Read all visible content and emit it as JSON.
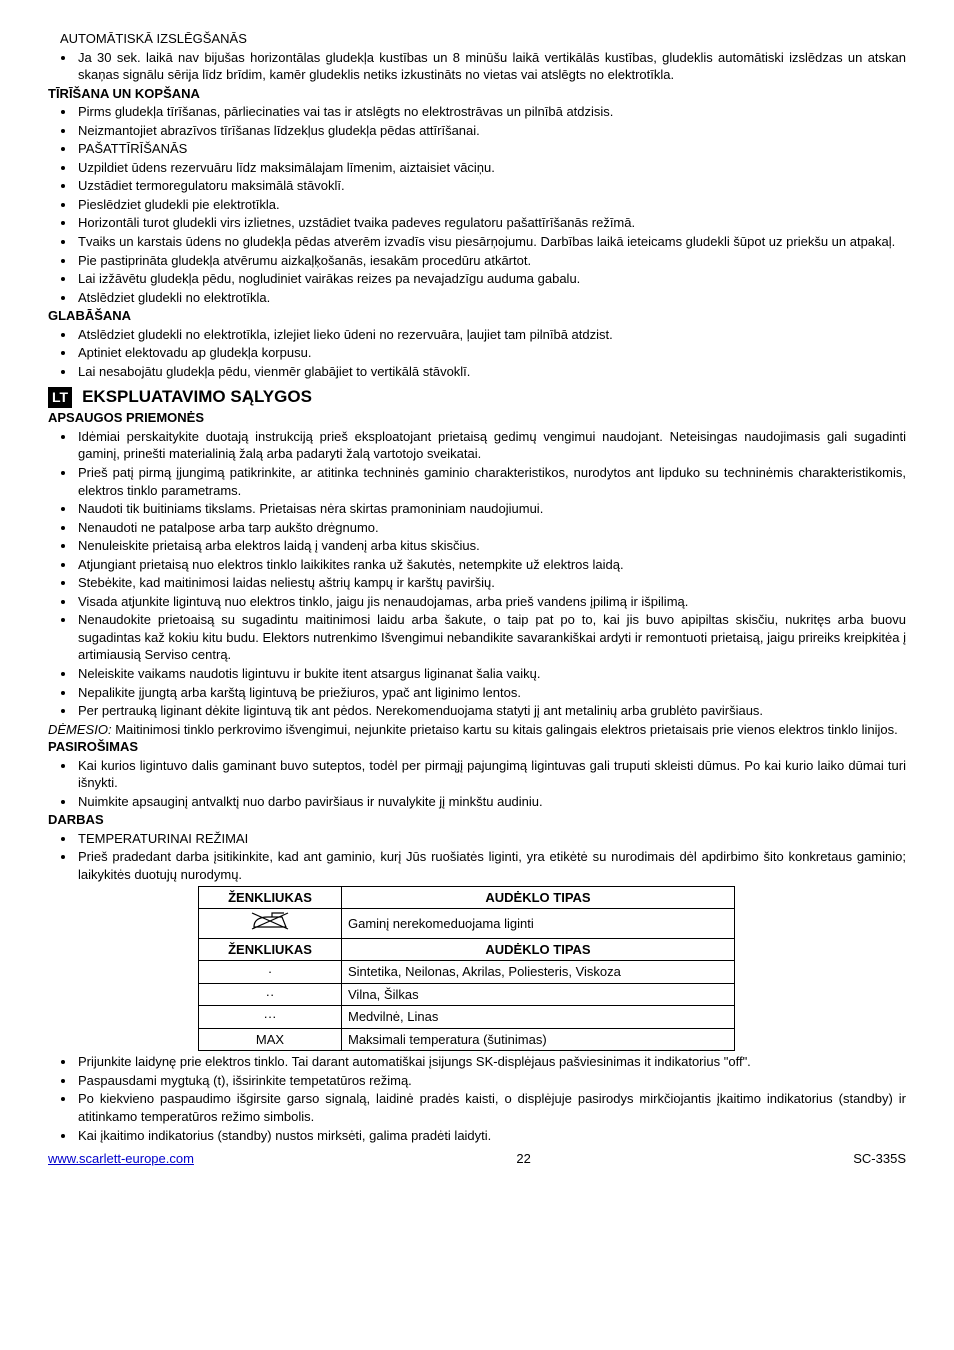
{
  "lv": {
    "section1_title": "AUTOMĀTISKĀ IZSLĒGŠANĀS",
    "section1_items": [
      "Ja 30 sek. laikā nav bijušas horizontālas gludekļa kustības un 8 minūšu laikā vertikālās kustības, gludeklis automātiski izslēdzas un atskan skaņas signālu sērija līdz brīdim, kamēr gludeklis netiks izkustināts no vietas vai atslēgts no elektrotīkla."
    ],
    "section2_title": "TĪRĪŠANA UN KOPŠANA",
    "section2_items": [
      "Pirms gludekļa tīrīšanas, pārliecinaties vai tas ir atslēgts no elektrostrāvas un pilnībā atdzisis.",
      "Neizmantojiet abrazīvos tīrīšanas līdzekļus gludekļa pēdas attīrīšanai.",
      "PAŠATTĪRĪŠANĀS",
      "Uzpildiet ūdens rezervuāru līdz maksimālajam līmenim, aiztaisiet vāciņu.",
      "Uzstādiet termoregulatoru maksimālā stāvoklī.",
      "Pieslēdziet gludekli pie elektrotīkla.",
      "Horizontāli turot gludekli virs izlietnes, uzstādiet tvaika padeves regulatoru pašattīrīšanās režīmā.",
      "Tvaiks un karstais ūdens no gludekļa pēdas atverēm izvadīs visu piesārņojumu. Darbības laikā ieteicams gludekli šūpot uz priekšu un atpakaļ.",
      "Pie pastiprināta gludekļa atvērumu aizkaļķošanās, iesakām procedūru atkārtot.",
      "Lai izžāvētu gludekļa pēdu, nogludiniet vairākas reizes pa nevajadzīgu auduma gabalu.",
      "Atslēdziet gludekli no elektrotīkla."
    ],
    "section3_title": "GLABĀŠANA",
    "section3_items": [
      "Atslēdziet gludekli no elektrotīkla, izlejiet lieko ūdeni no rezervuāra, ļaujiet tam pilnībā atdzist.",
      "Aptiniet elektovadu ap gludekļa korpusu.",
      "Lai nesabojātu gludekļa pēdu, vienmēr glabājiet to vertikālā stāvoklī."
    ]
  },
  "lt": {
    "lang_badge": "LT",
    "big_title": "EKSPLUATAVIMO SĄLYGOS",
    "section1_title": "APSAUGOS PRIEMONĖS",
    "section1_items": [
      "Idėmiai perskaitykite duotają instrukciją prieš eksploatojant prietaisą gedimų vengimui naudojant. Neteisingas naudojimasis gali sugadinti gaminį, prinešti materialinią žalą arba padaryti žalą vartotojo sveikatai.",
      "Prieš patį pirmą įjungimą patikrinkite, ar atitinka techninės gaminio charakteristikos, nurodytos ant lipduko su techninėmis charakteristikomis, elektros tinklo parametrams.",
      "Naudoti tik buitiniams tikslams. Prietaisas nėra skirtas pramoniniam naudojiumui.",
      "Nenaudoti ne patalpose arba tarp aukšto drėgnumo.",
      "Nenuleiskite prietaisą arba elektros laidą į vandenį arba kitus skisčius.",
      "Atjungiant prietaisą nuo elektros tinklo laikikites ranka už šakutės, netempkite už elektros laidą.",
      "Stebėkite, kad maitinimosi laidas neliestų aštrių kampų ir karštų paviršių.",
      "Visada atjunkite ligintuvą nuo elektros tinklo, jaigu jis nenaudojamas, arba prieš vandens įpilimą ir išpilimą.",
      "Nenaudokite prietoaisą su sugadintu maitinimosi laidu arba šakute, o taip pat po to, kai jis buvo apipiltas skisčiu, nukritęs arba buovu sugadintas kaž kokiu kitu budu. Elektors nutrenkimo Išvengimui nebandikite savarankiškai ardyti ir remontuoti prietaisą, jaigu prireiks kreipkitėa į artimiausią Serviso centrą.",
      "Neleiskite vaikams naudotis ligintuvu ir bukite itent atsargus liginanat šalia vaikų.",
      "Nepalikite įjungtą arba karštą ligintuvą be priežiuros, ypač ant liginimo lentos.",
      "Per pertrauką liginant dėkite ligintuvą tik  ant pėdos. Nerekomenduojama statyti jį ant metalinių arba grublėto paviršiaus."
    ],
    "attention_label": "DĖMESIO:",
    "attention_text": " Maitinimosi tinklo perkrovimo išvengimui, nejunkite prietaiso kartu su kitais galingais elektros prietaisais prie vienos elektros tinklo linijos.",
    "section2_title": "PASIROŠIMAS",
    "section2_items": [
      "Kai kurios ligintuvo dalis gaminant buvo suteptos, todėl per pirmąjį pajungimą ligintuvas gali truputi skleisti dūmus. Po kai kurio laiko dūmai turi išnykti.",
      "Nuimkite apsauginį antvalktį nuo darbo paviršiaus ir nuvalykite jį minkštu audiniu."
    ],
    "section3_title": "DARBAS",
    "section3_items_pre": [
      "TEMPERATURINAI REŽIMAI",
      "Prieš pradedant darba įsitikinkite, kad ant gaminio, kurį Jūs ruošiatės liginti, yra etikėtė su nurodimais dėl apdirbimo šito konkretaus gaminio; laikykitės duotujų nurodymų."
    ],
    "table": {
      "header1": {
        "label": "ŽENKLIUKAS",
        "type": "AUDĖKLO TIPAS"
      },
      "row_iron": "Gaminį nerekomeduojama liginti",
      "header2": {
        "label": "ŽENKLIUKAS",
        "type": "AUDĖKLO TIPAS"
      },
      "rows": [
        {
          "label": "·",
          "type": "Sintetika, Neilonas, Akrilas, Poliesteris, Viskoza"
        },
        {
          "label": "··",
          "type": "Vilna, Šilkas"
        },
        {
          "label": "···",
          "type": "Medvilnė, Linas"
        },
        {
          "label": "MAX",
          "type": "Maksimali temperatura (šutinimas)"
        }
      ]
    },
    "section3_items_post": [
      "Prijunkite laidynę prie elektros tinklo. Tai darant automatiškai įsijungs SK-displėjaus pašviesinimas it indikatorius \"off\".",
      "Paspausdami mygtuką (t), išsirinkite tempetatūros režimą.",
      "Po kiekvieno paspaudimo išgirsite garso signalą, laidinė pradės kaisti, o displėjuje pasirodys mirkčiojantis įkaitimo indikatorius (standby) ir atitinkamo temperatūros režimo simbolis.",
      "Kai įkaitimo indikatorius (standby) nustos mirksėti, galima pradėti laidyti."
    ]
  },
  "footer": {
    "url_text": "www.scarlett-europe.com",
    "url_href": "http://www.scarlett-europe.com",
    "page": "22",
    "model": "SC-335S"
  }
}
